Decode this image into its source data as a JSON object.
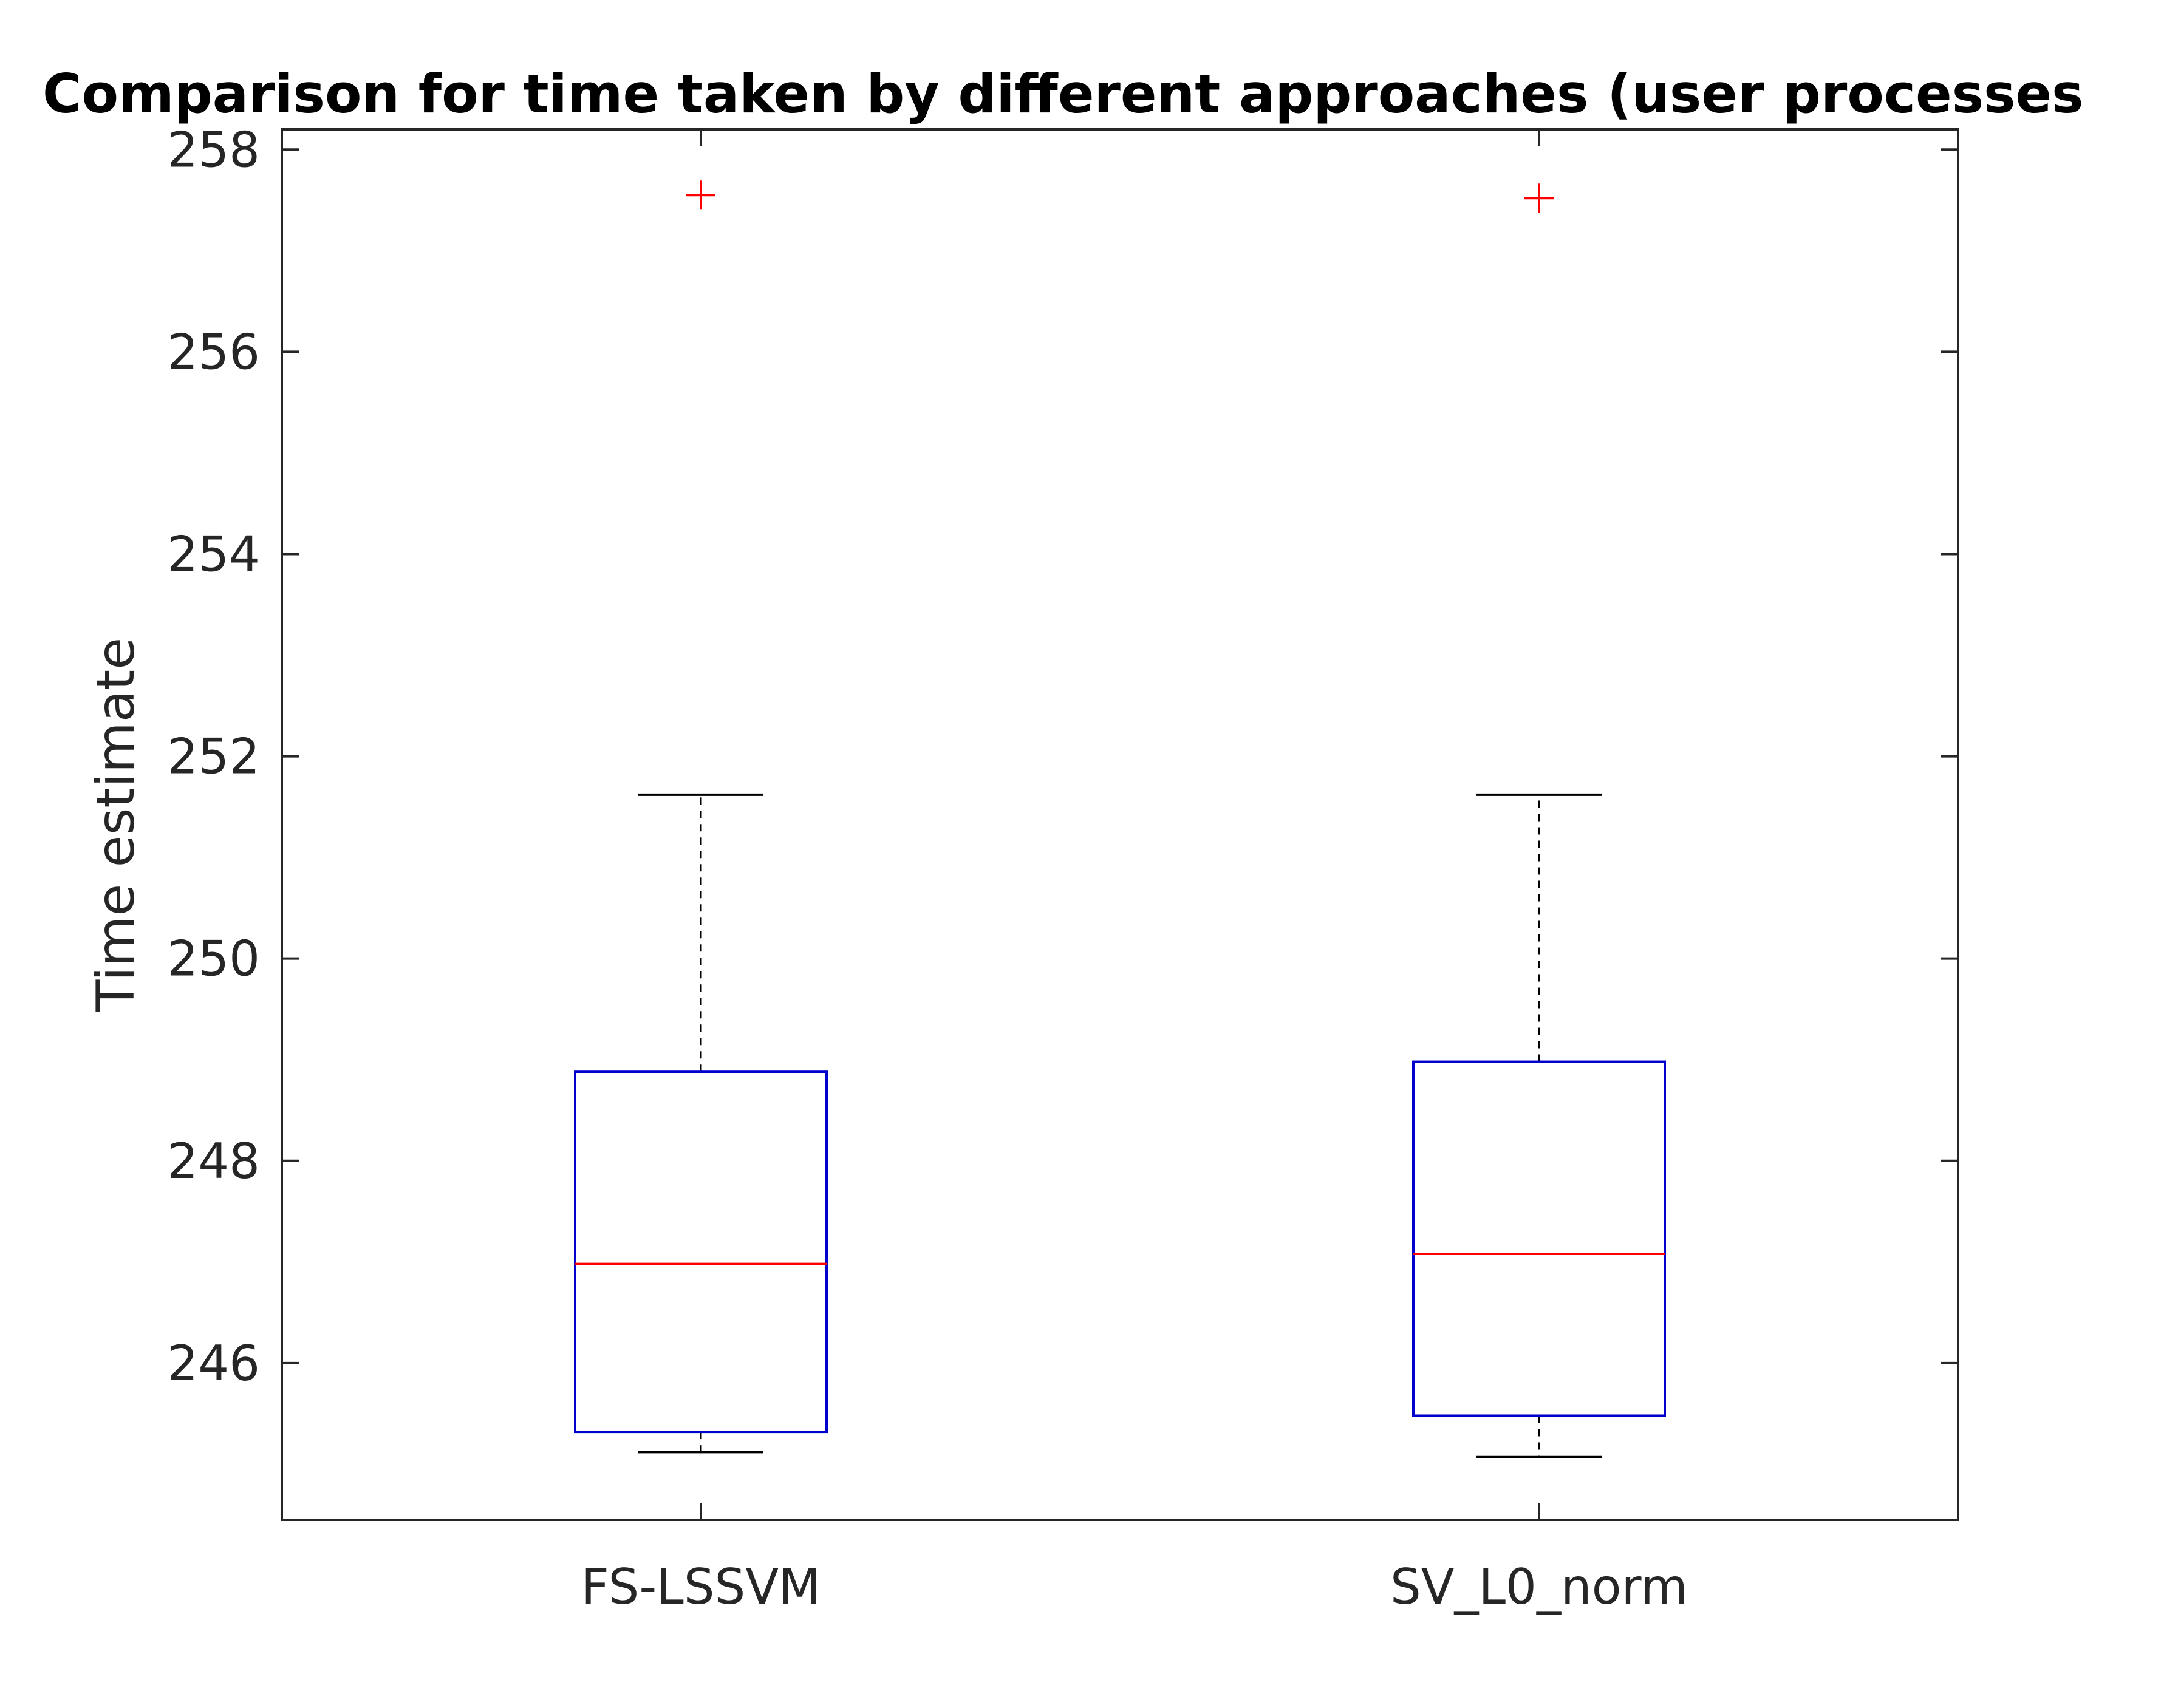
{
  "chart_data": {
    "type": "box",
    "title": "Comparison for time taken by different approaches (user processes",
    "xlabel": "",
    "ylabel": "Time estimate",
    "categories": [
      "FS-LSSVM",
      "SV_L0_norm"
    ],
    "ylim": [
      244.45,
      258.2
    ],
    "yticks": [
      246,
      248,
      250,
      252,
      254,
      256,
      258
    ],
    "grid": false,
    "boxes": [
      {
        "category": "FS-LSSVM",
        "whisker_low": 245.12,
        "q1": 245.32,
        "median": 246.98,
        "q3": 248.88,
        "whisker_high": 251.62,
        "outliers": [
          257.55
        ]
      },
      {
        "category": "SV_L0_norm",
        "whisker_low": 245.07,
        "q1": 245.48,
        "median": 247.08,
        "q3": 248.98,
        "whisker_high": 251.62,
        "outliers": [
          257.52
        ]
      }
    ],
    "colors": {
      "box": "#0000cc",
      "median": "#ff0000",
      "outlier": "#ff0000",
      "whisker": "#000000",
      "axis": "#262626"
    }
  }
}
